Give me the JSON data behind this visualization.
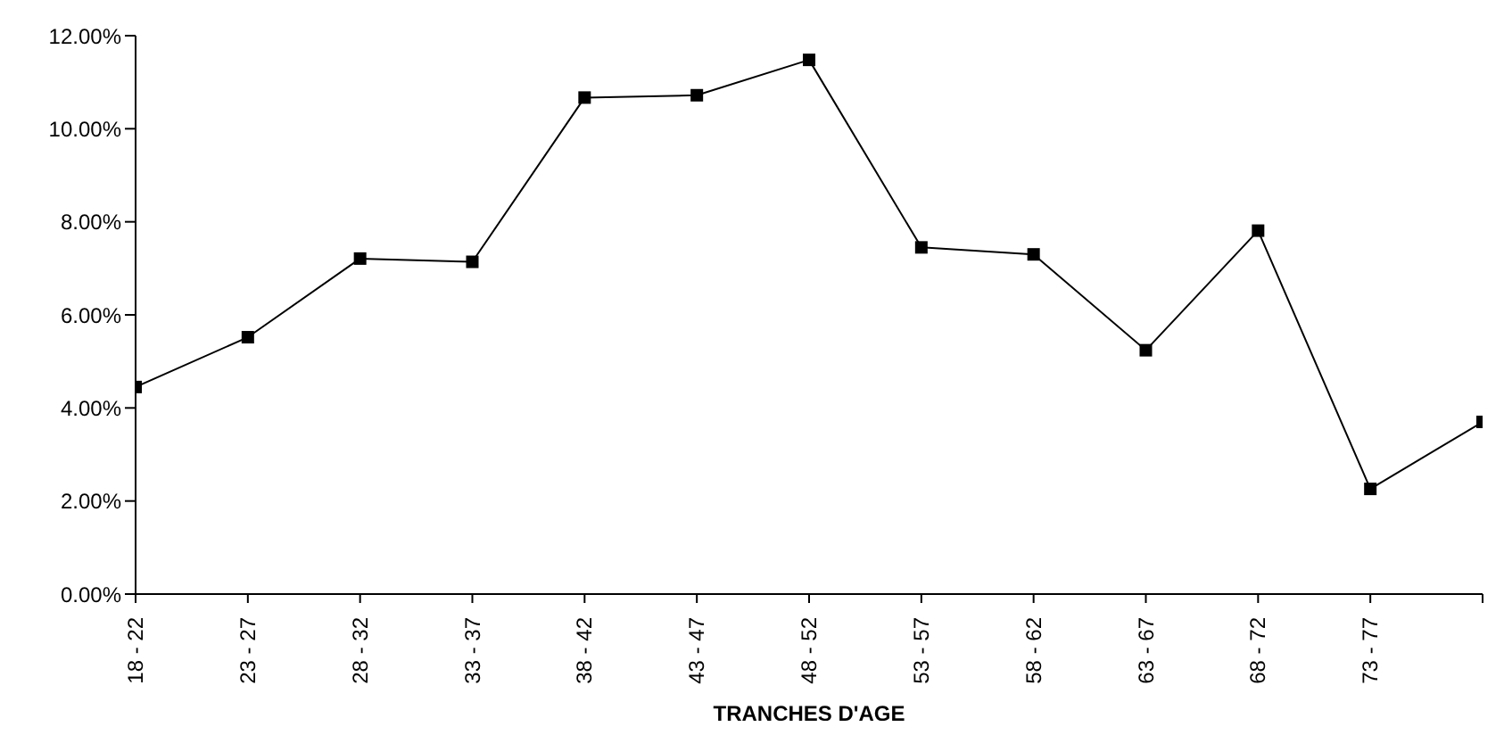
{
  "chart_data": {
    "type": "line",
    "xlabel": "TRANCHES D'AGE",
    "categories": [
      "18 - 22",
      "23 - 27",
      "28 - 32",
      "33 - 37",
      "38 - 42",
      "43 - 47",
      "48 - 52",
      "53 - 57",
      "58 - 62",
      "63 - 67",
      "68 - 72",
      "73 - 77",
      null
    ],
    "series": [
      {
        "color": "#000000",
        "values": [
          4.45,
          5.52,
          7.21,
          7.14,
          10.67,
          10.72,
          11.48,
          7.45,
          7.3,
          5.24,
          7.81,
          2.26,
          3.7
        ]
      }
    ],
    "ylim": [
      0,
      12
    ],
    "yticks": [
      {
        "value": 0,
        "label": "0.00%"
      },
      {
        "value": 2,
        "label": "2.00%"
      },
      {
        "value": 4,
        "label": "4.00%"
      },
      {
        "value": 6,
        "label": "6.00%"
      },
      {
        "value": 8,
        "label": "8.00%"
      },
      {
        "value": 10,
        "label": "10.00%"
      },
      {
        "value": 12,
        "label": "12.00%"
      }
    ],
    "marker": "square",
    "line_style": "solid"
  }
}
